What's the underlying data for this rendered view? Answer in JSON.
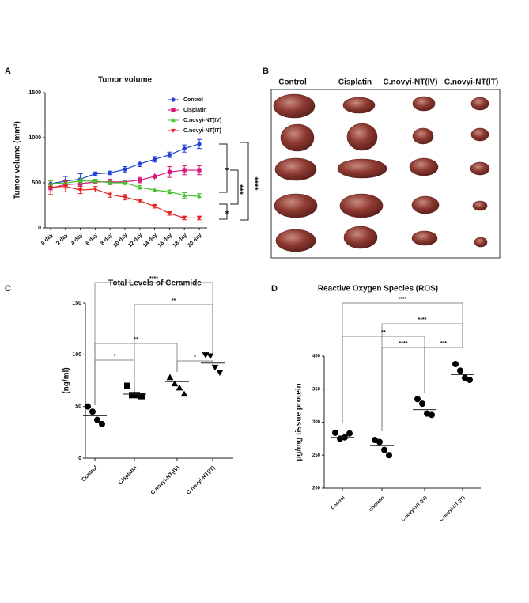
{
  "chart_data": [
    {
      "panel_label": "A",
      "type": "line",
      "title": "Tumor volume",
      "y_label": "Tumor volume  (mm³)",
      "categories": [
        "0 day",
        "2 day",
        "4 day",
        "6 day",
        "8 day",
        "10 day",
        "12 day",
        "14 day",
        "16 day",
        "18 day",
        "20 day"
      ],
      "ylim": [
        0,
        1500
      ],
      "yticks": [
        0,
        500,
        1000,
        1500
      ],
      "series": [
        {
          "name": "Control",
          "color": "#1f3fd6",
          "marker": "circle",
          "values": [
            490,
            520,
            540,
            600,
            610,
            650,
            710,
            760,
            810,
            880,
            930
          ],
          "errors": [
            40,
            50,
            60,
            20,
            20,
            30,
            30,
            30,
            30,
            40,
            50
          ]
        },
        {
          "name": "Cisplatin",
          "color": "#d6177f",
          "marker": "square",
          "values": [
            440,
            480,
            490,
            510,
            510,
            510,
            530,
            570,
            620,
            640,
            640
          ],
          "errors": [
            40,
            40,
            30,
            20,
            30,
            20,
            30,
            40,
            60,
            50,
            50
          ]
        },
        {
          "name": "C.novyi-NT(IV)",
          "color": "#45c22e",
          "marker": "triangle",
          "values": [
            490,
            500,
            520,
            520,
            500,
            500,
            450,
            420,
            400,
            360,
            350
          ],
          "errors": [
            30,
            30,
            30,
            20,
            20,
            20,
            20,
            20,
            20,
            30,
            30
          ]
        },
        {
          "name": "C.novyi-NT(IT)",
          "color": "#e8231e",
          "marker": "triangle-down",
          "values": [
            450,
            460,
            420,
            430,
            370,
            340,
            300,
            240,
            160,
            110,
            110
          ],
          "errors": [
            80,
            60,
            40,
            30,
            30,
            30,
            20,
            20,
            20,
            20,
            20
          ]
        }
      ],
      "annotations": [
        "*",
        "***",
        "****",
        "*"
      ]
    },
    {
      "panel_label": "C",
      "type": "dot",
      "title": "Total Levels of Ceramide",
      "y_label": "(ng/ml)",
      "categories": [
        "Control",
        "Cisplatin",
        "C.novyi-NT(IV)",
        "C.novyi-NT(IT)"
      ],
      "ylim": [
        0,
        150
      ],
      "yticks": [
        0,
        50,
        100,
        150
      ],
      "markers": [
        "circle",
        "square",
        "triangle",
        "triangle-down"
      ],
      "values": [
        [
          50,
          45,
          37,
          33
        ],
        [
          70,
          61,
          61,
          60
        ],
        [
          78,
          72,
          68,
          62
        ],
        [
          100,
          99,
          88,
          83
        ]
      ],
      "means": [
        41,
        62,
        74,
        92
      ],
      "annotations": [
        "****",
        "**",
        "**",
        "*",
        "*"
      ]
    },
    {
      "panel_label": "D",
      "type": "dot",
      "title": "Reactive Oxygen Species  (ROS)",
      "y_label": "pg/mg tissue protein",
      "categories": [
        "Control",
        "cisplatin",
        "C.novyi-NT (IV)",
        "C.novyi-NT (IT)"
      ],
      "ylim": [
        200,
        400
      ],
      "yticks": [
        200,
        250,
        300,
        350,
        400
      ],
      "markers": [
        "circle",
        "circle",
        "circle",
        "circle"
      ],
      "values": [
        [
          284,
          275,
          277,
          283
        ],
        [
          273,
          270,
          258,
          250
        ],
        [
          335,
          328,
          313,
          311
        ],
        [
          388,
          378,
          367,
          364
        ]
      ],
      "means": [
        277,
        265,
        319,
        372
      ],
      "annotations": [
        "****",
        "****",
        "**",
        "****",
        "***"
      ]
    }
  ],
  "panel_b": {
    "panel_label": "B",
    "columns": [
      "Control",
      "Cisplatin",
      "C.novyi-NT(IV)",
      "C.novyi-NT(IT)"
    ]
  }
}
